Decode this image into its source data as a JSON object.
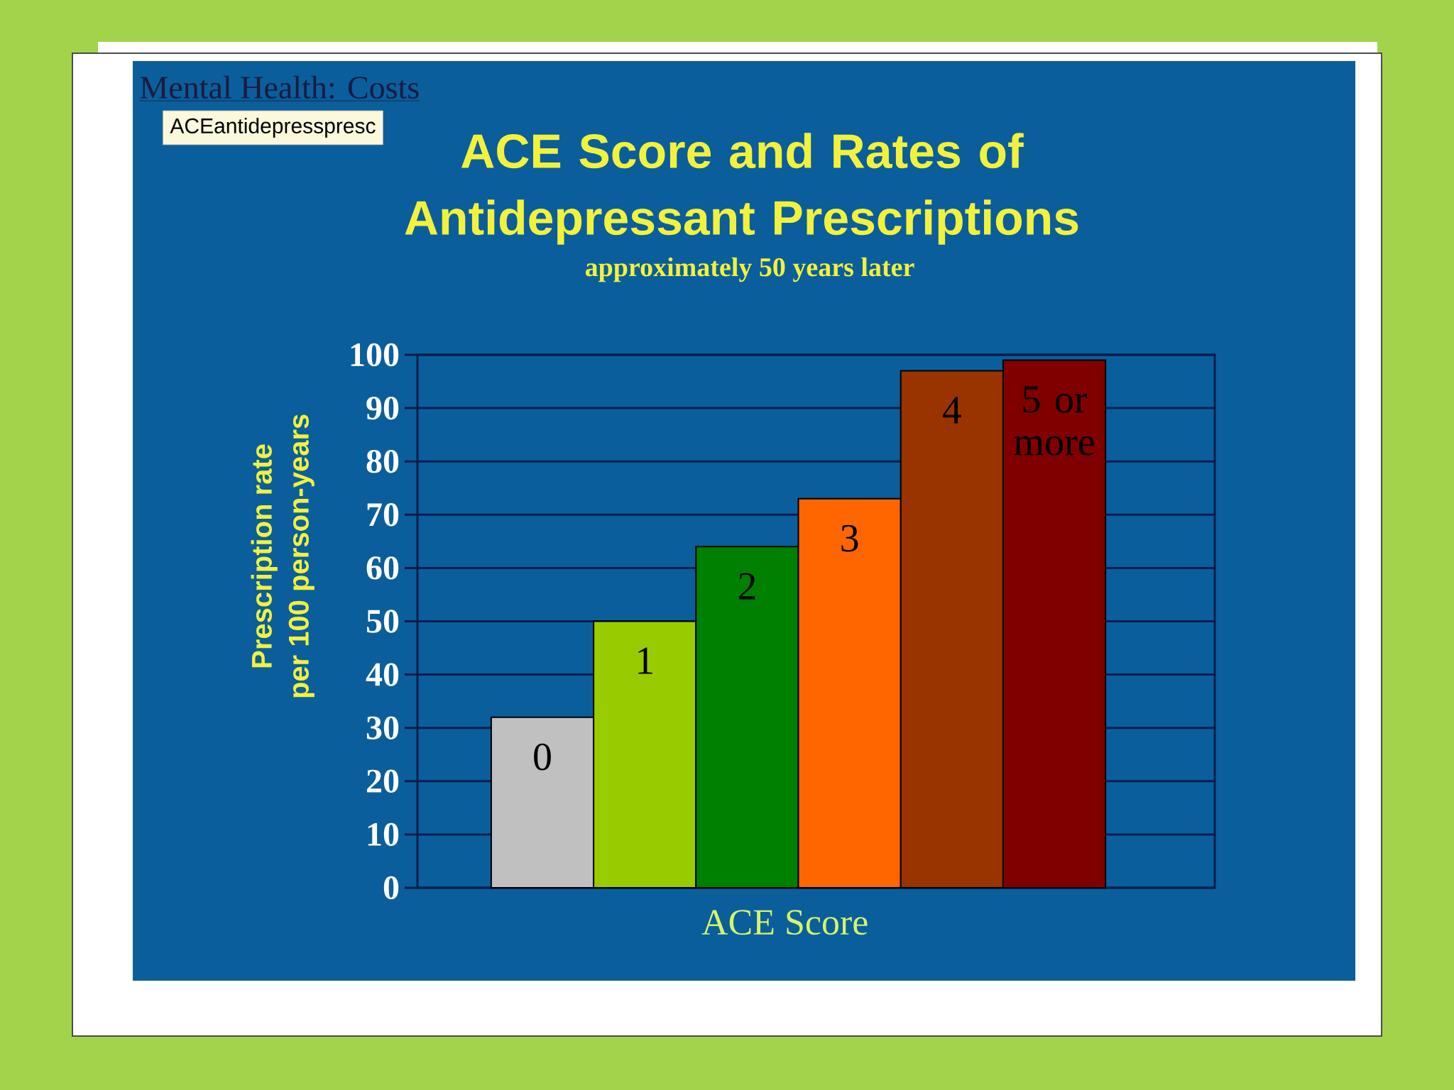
{
  "chart_data": {
    "type": "bar",
    "title": "ACE Score and Rates of Antidepressant Prescriptions",
    "subtitle": "approximately 50 years later",
    "xlabel": "ACE Score",
    "ylabel": "Prescription rate\nper 100 person-years",
    "annotations": [
      "Mental Health: Costs",
      "ACEantidepresspresc"
    ],
    "categories": [
      "0",
      "1",
      "2",
      "3",
      "4",
      "5 or more"
    ],
    "values": [
      32,
      50,
      64,
      73,
      97,
      99
    ],
    "colors": [
      "#c0c0c0",
      "#99cc00",
      "#008000",
      "#ff6600",
      "#993300",
      "#800000"
    ],
    "ylim": [
      0,
      100
    ],
    "yticks": [
      0,
      10,
      20,
      30,
      40,
      50,
      60,
      70,
      80,
      90,
      100
    ],
    "grid": "y"
  }
}
